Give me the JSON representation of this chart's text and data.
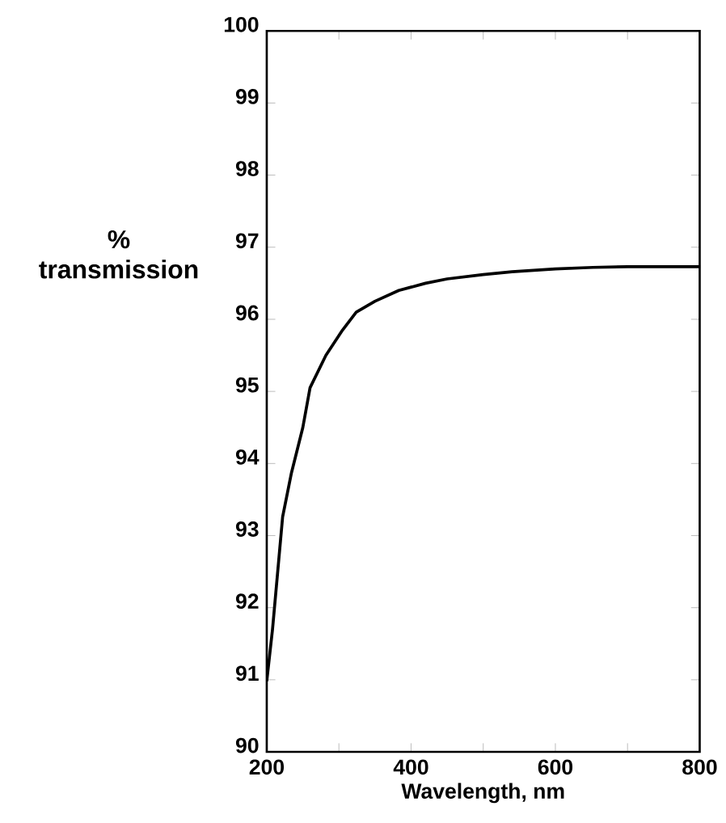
{
  "chart_data": {
    "type": "line",
    "xlabel": "Wavelength, nm",
    "ylabel": "%\ntransmission",
    "x": [
      200,
      208,
      222,
      234,
      250,
      260,
      282,
      305,
      324,
      350,
      383,
      420,
      450,
      500,
      540,
      600,
      652,
      700,
      750,
      800
    ],
    "values": [
      90.98,
      91.7,
      93.26,
      93.86,
      94.5,
      95.05,
      95.5,
      95.85,
      96.1,
      96.25,
      96.4,
      96.5,
      96.56,
      96.62,
      96.66,
      96.7,
      96.72,
      96.73,
      96.73,
      96.73
    ],
    "color": "#000000",
    "xlim": [
      200,
      800
    ],
    "ylim": [
      90,
      100
    ],
    "xticks": [
      200,
      400,
      600,
      800
    ],
    "yticks": [
      90,
      91,
      92,
      93,
      94,
      95,
      96,
      97,
      98,
      99,
      100
    ],
    "grid": false,
    "marker": "none",
    "line_style": "solid"
  }
}
